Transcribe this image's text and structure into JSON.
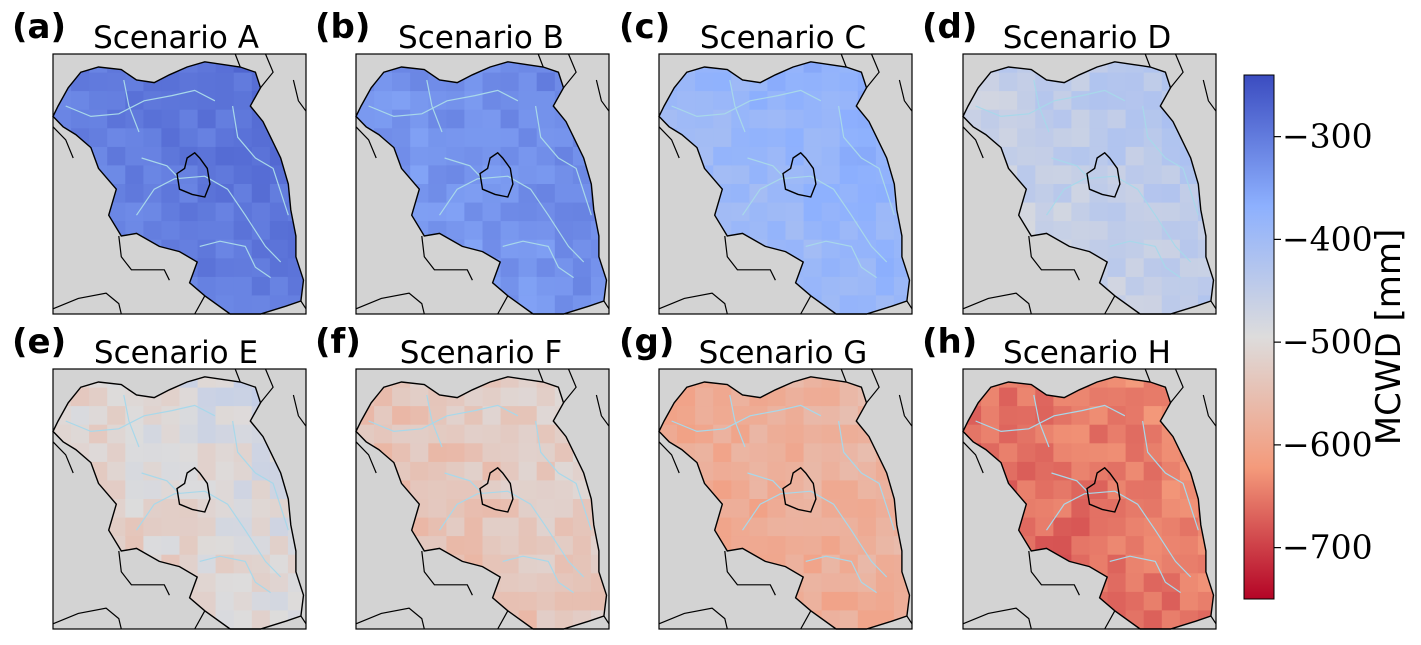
{
  "chart_data": {
    "type": "heatmap",
    "colormap": "coolwarm_r",
    "panels": [
      {
        "label": "(a)",
        "title": "Scenario A",
        "mean": -300,
        "spread": 30
      },
      {
        "label": "(b)",
        "title": "Scenario B",
        "mean": -330,
        "spread": 35
      },
      {
        "label": "(c)",
        "title": "Scenario C",
        "mean": -385,
        "spread": 35
      },
      {
        "label": "(d)",
        "title": "Scenario D",
        "mean": -450,
        "spread": 45
      },
      {
        "label": "(e)",
        "title": "Scenario E",
        "mean": -505,
        "spread": 55
      },
      {
        "label": "(f)",
        "title": "Scenario F",
        "mean": -540,
        "spread": 50
      },
      {
        "label": "(g)",
        "title": "Scenario G",
        "mean": -585,
        "spread": 40
      },
      {
        "label": "(h)",
        "title": "Scenario H",
        "mean": -655,
        "spread": 45
      }
    ],
    "colorbar": {
      "label": "MCWD [mm]",
      "vmin": -750,
      "vmax": -240,
      "ticks": [
        -300,
        -400,
        -500,
        -600,
        -700
      ],
      "tick_labels": [
        "−300",
        "−400",
        "−500",
        "−600",
        "−700"
      ]
    },
    "colors": {
      "high": "#3b4cc0",
      "mid": "#dddcdc",
      "low": "#b40426",
      "background": "#d3d3d3",
      "rivers": "#a8d8ea",
      "borders": "#000000"
    }
  }
}
